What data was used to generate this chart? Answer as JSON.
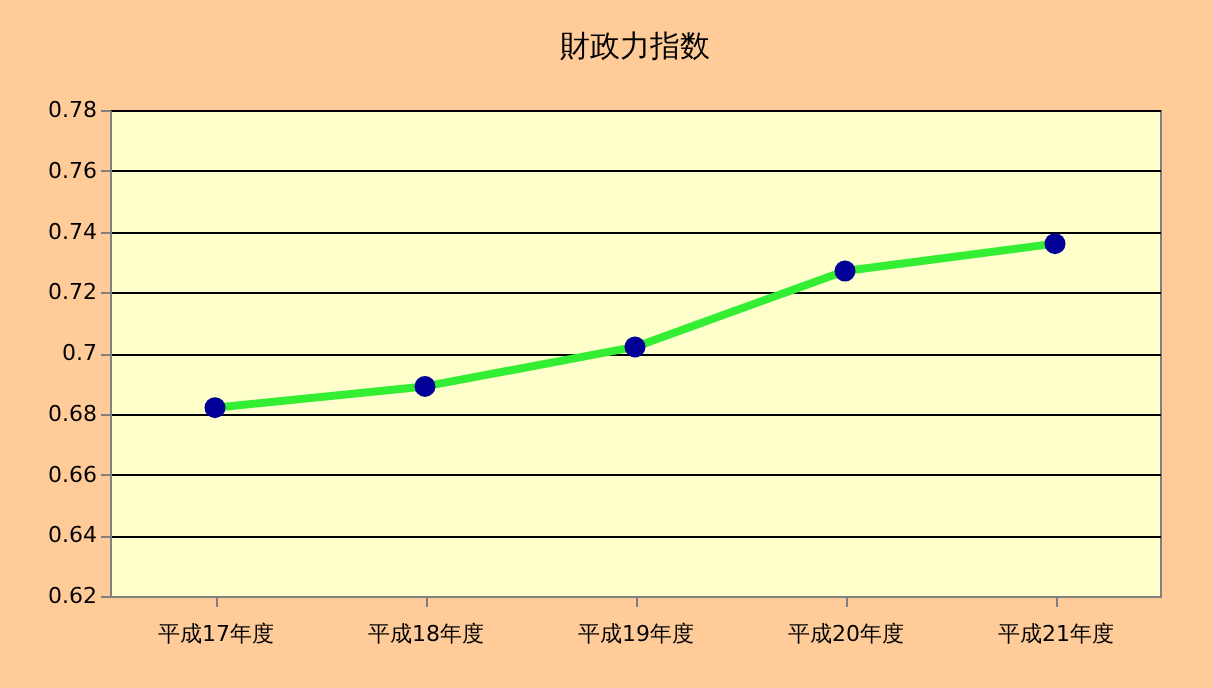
{
  "chart_data": {
    "type": "line",
    "title": "財政力指数",
    "categories": [
      "平成17年度",
      "平成18年度",
      "平成19年度",
      "平成20年度",
      "平成21年度"
    ],
    "series": [
      {
        "color": "#33ee33",
        "values": [
          0.682,
          0.689,
          0.702,
          0.727,
          0.736
        ]
      }
    ],
    "marker": "circle",
    "line_style": "solid",
    "ylim": [
      0.62,
      0.78
    ],
    "yticks": [
      0.62,
      0.64,
      0.66,
      0.68,
      0.7,
      0.72,
      0.74,
      0.76,
      0.78
    ],
    "grid": "y"
  }
}
